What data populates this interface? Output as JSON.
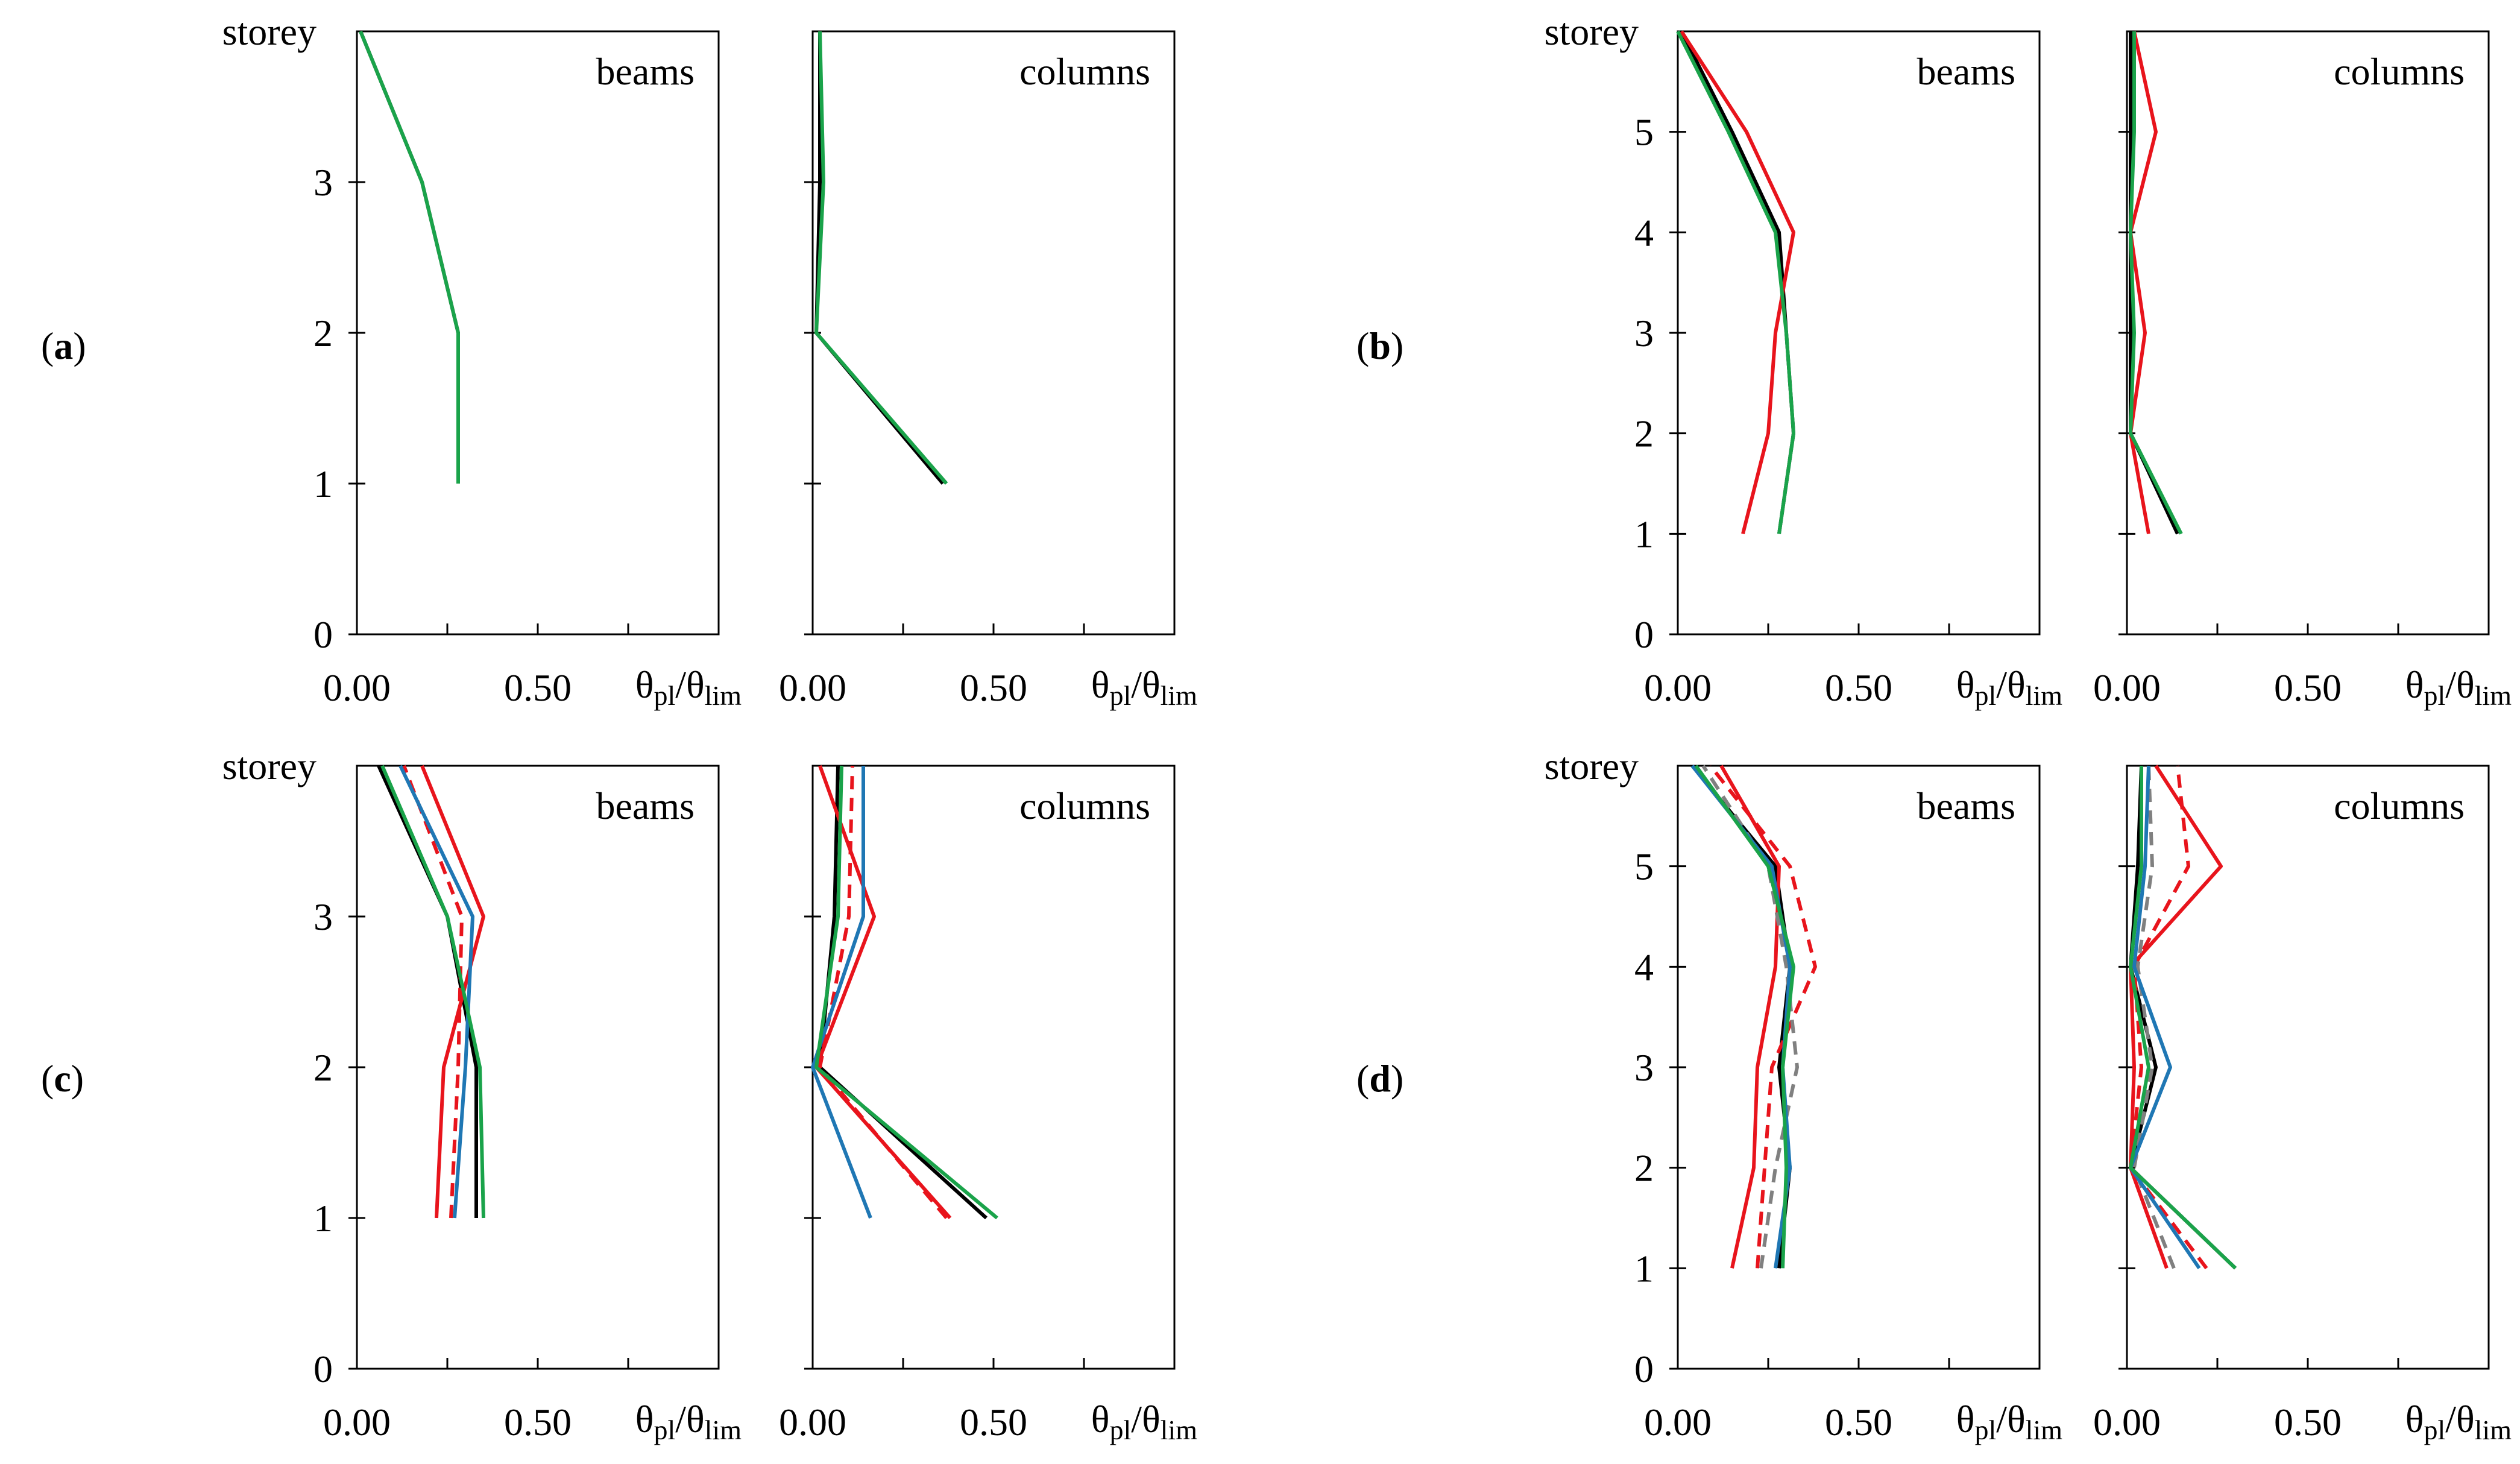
{
  "chart_data": [
    {
      "type": "line",
      "panel": "(a)",
      "y_axis_label": "storey",
      "x_axis_label_base": "θ",
      "x_axis_label_sub": "pl",
      "x_axis_label_denom_base": "θ",
      "x_axis_label_denom_sub": "lim",
      "y_ticks": [
        "0",
        "1",
        "2",
        "3"
      ],
      "ylim": [
        0,
        4
      ],
      "x_tick_labels": [
        "0.00",
        "0.50"
      ],
      "subplots": [
        {
          "title": "beams",
          "xlim": [
            0,
            1.0
          ],
          "series": [
            {
              "name": "black",
              "color": "#000000",
              "dash": false,
              "x": [
                0.28,
                0.28,
                0.18,
                0.01
              ],
              "y": [
                1,
                2,
                3,
                4
              ]
            },
            {
              "name": "green",
              "color": "#1aa34a",
              "dash": false,
              "x": [
                0.28,
                0.28,
                0.18,
                0.01
              ],
              "y": [
                1,
                2,
                3,
                4
              ]
            }
          ]
        },
        {
          "title": "columns",
          "xlim": [
            0,
            1.0
          ],
          "series": [
            {
              "name": "black",
              "color": "#000000",
              "dash": false,
              "x": [
                0.36,
                0.01,
                0.02,
                0.02
              ],
              "y": [
                1,
                2,
                3,
                4
              ]
            },
            {
              "name": "green",
              "color": "#1aa34a",
              "dash": false,
              "x": [
                0.37,
                0.01,
                0.03,
                0.02
              ],
              "y": [
                1,
                2,
                3,
                4
              ]
            }
          ]
        }
      ]
    },
    {
      "type": "line",
      "panel": "(b)",
      "y_axis_label": "storey",
      "x_axis_label_base": "θ",
      "x_axis_label_sub": "pl",
      "x_axis_label_denom_base": "θ",
      "x_axis_label_denom_sub": "lim",
      "y_ticks": [
        "0",
        "1",
        "2",
        "3",
        "4",
        "5"
      ],
      "ylim": [
        0,
        6
      ],
      "x_tick_labels": [
        "0.00",
        "0.50"
      ],
      "subplots": [
        {
          "title": "beams",
          "xlim": [
            0,
            1.0
          ],
          "series": [
            {
              "name": "black",
              "color": "#000000",
              "dash": false,
              "x": [
                0.28,
                0.32,
                0.3,
                0.28,
                0.15,
                0.01
              ],
              "y": [
                1,
                2,
                3,
                4,
                5,
                6
              ]
            },
            {
              "name": "red",
              "color": "#e8141c",
              "dash": false,
              "x": [
                0.18,
                0.25,
                0.27,
                0.32,
                0.19,
                0.01
              ],
              "y": [
                1,
                2,
                3,
                4,
                5,
                6
              ]
            },
            {
              "name": "green",
              "color": "#1aa34a",
              "dash": false,
              "x": [
                0.28,
                0.32,
                0.3,
                0.27,
                0.14,
                0.0
              ],
              "y": [
                1,
                2,
                3,
                4,
                5,
                6
              ]
            }
          ]
        },
        {
          "title": "columns",
          "xlim": [
            0,
            1.0
          ],
          "series": [
            {
              "name": "black",
              "color": "#000000",
              "dash": false,
              "x": [
                0.14,
                0.01,
                0.01,
                0.01,
                0.01,
                0.01
              ],
              "y": [
                1,
                2,
                3,
                4,
                5,
                6
              ]
            },
            {
              "name": "red",
              "color": "#e8141c",
              "dash": false,
              "x": [
                0.06,
                0.01,
                0.05,
                0.01,
                0.08,
                0.02
              ],
              "y": [
                1,
                2,
                3,
                4,
                5,
                6
              ]
            },
            {
              "name": "green",
              "color": "#1aa34a",
              "dash": false,
              "x": [
                0.15,
                0.01,
                0.02,
                0.01,
                0.02,
                0.02
              ],
              "y": [
                1,
                2,
                3,
                4,
                5,
                6
              ]
            }
          ]
        }
      ]
    },
    {
      "type": "line",
      "panel": "(c)",
      "y_axis_label": "storey",
      "x_axis_label_base": "θ",
      "x_axis_label_sub": "pl",
      "x_axis_label_denom_base": "θ",
      "x_axis_label_denom_sub": "lim",
      "y_ticks": [
        "0",
        "1",
        "2",
        "3"
      ],
      "ylim": [
        0,
        4
      ],
      "x_tick_labels": [
        "0.00",
        "0.50"
      ],
      "subplots": [
        {
          "title": "beams",
          "xlim": [
            0,
            1.0
          ],
          "series": [
            {
              "name": "black",
              "color": "#000000",
              "dash": false,
              "x": [
                0.33,
                0.33,
                0.25,
                0.06
              ],
              "y": [
                1,
                2,
                3,
                4
              ]
            },
            {
              "name": "red",
              "color": "#e8141c",
              "dash": false,
              "x": [
                0.22,
                0.24,
                0.35,
                0.18
              ],
              "y": [
                1,
                2,
                3,
                4
              ]
            },
            {
              "name": "red dashed",
              "color": "#e8141c",
              "dash": true,
              "x": [
                0.26,
                0.28,
                0.29,
                0.13
              ],
              "y": [
                1,
                2,
                3,
                4
              ]
            },
            {
              "name": "blue",
              "color": "#1f77b4",
              "dash": false,
              "x": [
                0.27,
                0.3,
                0.32,
                0.12
              ],
              "y": [
                1,
                2,
                3,
                4
              ]
            },
            {
              "name": "green",
              "color": "#1aa34a",
              "dash": false,
              "x": [
                0.35,
                0.34,
                0.25,
                0.07
              ],
              "y": [
                1,
                2,
                3,
                4
              ]
            }
          ]
        },
        {
          "title": "columns",
          "xlim": [
            0,
            1.0
          ],
          "series": [
            {
              "name": "black",
              "color": "#000000",
              "dash": false,
              "x": [
                0.48,
                0.02,
                0.06,
                0.07
              ],
              "y": [
                1,
                2,
                3,
                4
              ]
            },
            {
              "name": "red",
              "color": "#e8141c",
              "dash": false,
              "x": [
                0.38,
                0.01,
                0.17,
                0.02
              ],
              "y": [
                1,
                2,
                3,
                4
              ]
            },
            {
              "name": "red dashed",
              "color": "#e8141c",
              "dash": true,
              "x": [
                0.37,
                0.02,
                0.1,
                0.11
              ],
              "y": [
                1,
                2,
                3,
                4
              ]
            },
            {
              "name": "blue",
              "color": "#1f77b4",
              "dash": false,
              "x": [
                0.16,
                0.0,
                0.14,
                0.14
              ],
              "y": [
                1,
                2,
                3,
                4
              ]
            },
            {
              "name": "green",
              "color": "#1aa34a",
              "dash": false,
              "x": [
                0.51,
                0.01,
                0.07,
                0.08
              ],
              "y": [
                1,
                2,
                3,
                4
              ]
            }
          ]
        }
      ]
    },
    {
      "type": "line",
      "panel": "(d)",
      "y_axis_label": "storey",
      "x_axis_label_base": "θ",
      "x_axis_label_sub": "pl",
      "x_axis_label_denom_base": "θ",
      "x_axis_label_denom_sub": "lim",
      "y_ticks": [
        "0",
        "1",
        "2",
        "3",
        "4",
        "5"
      ],
      "ylim": [
        0,
        6
      ],
      "x_tick_labels": [
        "0.00",
        "0.50"
      ],
      "subplots": [
        {
          "title": "beams",
          "xlim": [
            0,
            1.0
          ],
          "series": [
            {
              "name": "black",
              "color": "#000000",
              "dash": false,
              "x": [
                0.28,
                0.31,
                0.28,
                0.31,
                0.27,
                0.04
              ],
              "y": [
                1,
                2,
                3,
                4,
                5,
                6
              ]
            },
            {
              "name": "red",
              "color": "#e8141c",
              "dash": false,
              "x": [
                0.15,
                0.21,
                0.22,
                0.27,
                0.28,
                0.12
              ],
              "y": [
                1,
                2,
                3,
                4,
                5,
                6
              ]
            },
            {
              "name": "red dashed",
              "color": "#e8141c",
              "dash": true,
              "x": [
                0.22,
                0.24,
                0.26,
                0.38,
                0.31,
                0.09
              ],
              "y": [
                1,
                2,
                3,
                4,
                5,
                6
              ]
            },
            {
              "name": "grey dashed",
              "color": "#808080",
              "dash": true,
              "x": [
                0.23,
                0.27,
                0.33,
                0.3,
                0.25,
                0.07
              ],
              "y": [
                1,
                2,
                3,
                4,
                5,
                6
              ]
            },
            {
              "name": "blue",
              "color": "#1f77b4",
              "dash": false,
              "x": [
                0.27,
                0.31,
                0.29,
                0.31,
                0.26,
                0.04
              ],
              "y": [
                1,
                2,
                3,
                4,
                5,
                6
              ]
            },
            {
              "name": "green",
              "color": "#1aa34a",
              "dash": false,
              "x": [
                0.29,
                0.3,
                0.29,
                0.32,
                0.25,
                0.05
              ],
              "y": [
                1,
                2,
                3,
                4,
                5,
                6
              ]
            }
          ]
        },
        {
          "title": "columns",
          "xlim": [
            0,
            1.0
          ],
          "series": [
            {
              "name": "black",
              "color": "#000000",
              "dash": false,
              "x": [
                0.3,
                0.01,
                0.08,
                0.01,
                0.03,
                0.04
              ],
              "y": [
                1,
                2,
                3,
                4,
                5,
                6
              ]
            },
            {
              "name": "red",
              "color": "#e8141c",
              "dash": false,
              "x": [
                0.11,
                0.01,
                0.02,
                0.01,
                0.26,
                0.08
              ],
              "y": [
                1,
                2,
                3,
                4,
                5,
                6
              ]
            },
            {
              "name": "red dashed",
              "color": "#e8141c",
              "dash": true,
              "x": [
                0.22,
                0.01,
                0.04,
                0.02,
                0.17,
                0.14
              ],
              "y": [
                1,
                2,
                3,
                4,
                5,
                6
              ]
            },
            {
              "name": "grey dashed",
              "color": "#808080",
              "dash": true,
              "x": [
                0.13,
                0.02,
                0.07,
                0.03,
                0.07,
                0.06
              ],
              "y": [
                1,
                2,
                3,
                4,
                5,
                6
              ]
            },
            {
              "name": "blue",
              "color": "#1f77b4",
              "dash": false,
              "x": [
                0.2,
                0.01,
                0.12,
                0.02,
                0.05,
                0.06
              ],
              "y": [
                1,
                2,
                3,
                4,
                5,
                6
              ]
            },
            {
              "name": "green",
              "color": "#1aa34a",
              "dash": false,
              "x": [
                0.3,
                0.01,
                0.06,
                0.01,
                0.04,
                0.04
              ],
              "y": [
                1,
                2,
                3,
                4,
                5,
                6
              ]
            }
          ]
        }
      ]
    }
  ]
}
